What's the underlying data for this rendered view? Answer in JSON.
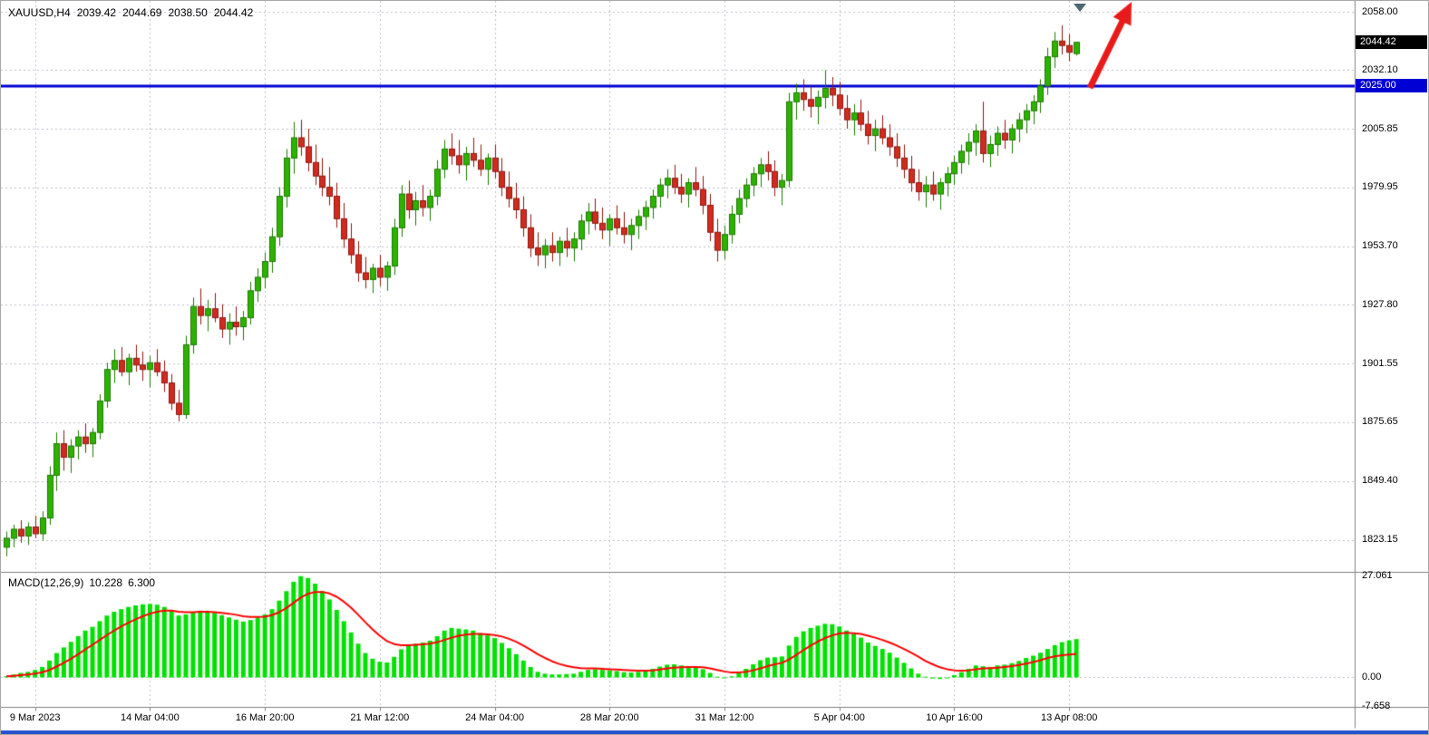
{
  "header": {
    "symbol": "XAUUSD,H4",
    "open": "2039.42",
    "high": "2044.69",
    "low": "2038.50",
    "close": "2044.42"
  },
  "macd_panel": {
    "label": "MACD(12,26,9)",
    "main_value": "10.228",
    "signal_value": "6.300",
    "axis": [
      {
        "text": "27.061",
        "value": 27.061
      },
      {
        "text": "0.00",
        "value": 0
      },
      {
        "text": "-7.658",
        "value": -7.658
      }
    ]
  },
  "price_axis": {
    "gridline_labels": [
      "2058.00",
      "2032.10",
      "2005.85",
      "1979.95",
      "1953.70",
      "1927.80",
      "1901.55",
      "1875.65",
      "1849.40",
      "1823.15"
    ],
    "current_price": {
      "label": "2044.42",
      "value": 2044.42,
      "bg": "#000000",
      "fg": "#ffffff"
    },
    "horizontal_line": {
      "label": "2025.00",
      "value": 2025.0,
      "color": "#0000d4"
    }
  },
  "time_axis": {
    "labels": [
      {
        "text": "9 Mar 2023",
        "index": 4
      },
      {
        "text": "14 Mar 04:00",
        "index": 20
      },
      {
        "text": "16 Mar 20:00",
        "index": 36
      },
      {
        "text": "21 Mar 12:00",
        "index": 52
      },
      {
        "text": "24 Mar 04:00",
        "index": 68
      },
      {
        "text": "28 Mar 20:00",
        "index": 84
      },
      {
        "text": "31 Mar 12:00",
        "index": 100
      },
      {
        "text": "5 Apr 04:00",
        "index": 116
      },
      {
        "text": "10 Apr 16:00",
        "index": 132
      },
      {
        "text": "13 Apr 08:00",
        "index": 148
      }
    ]
  },
  "colors": {
    "grid": "#b9bfcc",
    "bull": "#2db200",
    "bull_stroke": "#1d7a00",
    "bear": "#d02b1f",
    "bear_stroke": "#8f1710",
    "macd_hist": "#00e100",
    "macd_signal": "#ff0000",
    "hline": "#0000d4",
    "arrow": "#e81a1a",
    "separator": "#808080",
    "window_edge": "#2a52cc",
    "shift_marker": "#4d6670",
    "axis_text": "#000000"
  },
  "chart_data": {
    "type": "candlestick",
    "symbol": "XAUUSD",
    "timeframe": "H4",
    "title": "XAUUSD,H4 with MACD(12,26,9)",
    "price_axis_range": [
      1823.15,
      2058.0
    ],
    "macd_axis_range": [
      -7.658,
      27.061
    ],
    "horizontal_line_value": 2025.0,
    "last_price": 2044.42,
    "candles": [
      [
        1820,
        1827,
        1816,
        1824
      ],
      [
        1824,
        1830,
        1820,
        1828
      ],
      [
        1828,
        1832,
        1822,
        1825
      ],
      [
        1825,
        1831,
        1821,
        1829
      ],
      [
        1829,
        1834,
        1824,
        1826
      ],
      [
        1826,
        1836,
        1823,
        1833
      ],
      [
        1833,
        1856,
        1830,
        1852
      ],
      [
        1852,
        1871,
        1845,
        1866
      ],
      [
        1866,
        1872,
        1854,
        1860
      ],
      [
        1860,
        1868,
        1853,
        1865
      ],
      [
        1865,
        1872,
        1859,
        1869
      ],
      [
        1869,
        1875,
        1862,
        1866
      ],
      [
        1866,
        1873,
        1860,
        1871
      ],
      [
        1871,
        1888,
        1868,
        1885
      ],
      [
        1885,
        1902,
        1882,
        1899
      ],
      [
        1899,
        1908,
        1893,
        1903
      ],
      [
        1903,
        1909,
        1896,
        1898
      ],
      [
        1898,
        1906,
        1892,
        1904
      ],
      [
        1904,
        1910,
        1898,
        1901
      ],
      [
        1901,
        1907,
        1894,
        1899
      ],
      [
        1899,
        1905,
        1891,
        1902
      ],
      [
        1902,
        1908,
        1896,
        1898
      ],
      [
        1898,
        1903,
        1889,
        1893
      ],
      [
        1893,
        1897,
        1881,
        1884
      ],
      [
        1884,
        1890,
        1876,
        1879
      ],
      [
        1879,
        1914,
        1877,
        1910
      ],
      [
        1910,
        1931,
        1906,
        1927
      ],
      [
        1927,
        1935,
        1919,
        1923
      ],
      [
        1923,
        1930,
        1916,
        1926
      ],
      [
        1926,
        1933,
        1920,
        1922
      ],
      [
        1922,
        1928,
        1913,
        1917
      ],
      [
        1917,
        1924,
        1910,
        1920
      ],
      [
        1920,
        1927,
        1914,
        1918
      ],
      [
        1918,
        1925,
        1912,
        1922
      ],
      [
        1922,
        1938,
        1919,
        1934
      ],
      [
        1934,
        1944,
        1929,
        1940
      ],
      [
        1940,
        1951,
        1935,
        1947
      ],
      [
        1947,
        1962,
        1942,
        1958
      ],
      [
        1958,
        1980,
        1954,
        1976
      ],
      [
        1976,
        1997,
        1971,
        1993
      ],
      [
        1993,
        2009,
        1986,
        2002
      ],
      [
        2002,
        2010,
        1994,
        1998
      ],
      [
        1998,
        2006,
        1987,
        1991
      ],
      [
        1991,
        1999,
        1981,
        1985
      ],
      [
        1985,
        1993,
        1976,
        1980
      ],
      [
        1980,
        1989,
        1972,
        1976
      ],
      [
        1976,
        1982,
        1962,
        1966
      ],
      [
        1966,
        1973,
        1953,
        1957
      ],
      [
        1957,
        1964,
        1946,
        1950
      ],
      [
        1950,
        1956,
        1938,
        1942
      ],
      [
        1942,
        1949,
        1935,
        1939
      ],
      [
        1939,
        1946,
        1933,
        1944
      ],
      [
        1944,
        1950,
        1936,
        1940
      ],
      [
        1940,
        1947,
        1934,
        1945
      ],
      [
        1945,
        1966,
        1941,
        1962
      ],
      [
        1962,
        1981,
        1958,
        1977
      ],
      [
        1977,
        1983,
        1966,
        1970
      ],
      [
        1970,
        1978,
        1963,
        1974
      ],
      [
        1974,
        1981,
        1967,
        1971
      ],
      [
        1971,
        1979,
        1965,
        1976
      ],
      [
        1976,
        1992,
        1972,
        1988
      ],
      [
        1988,
        2001,
        1984,
        1997
      ],
      [
        1997,
        2004,
        1990,
        1994
      ],
      [
        1994,
        2001,
        1986,
        1990
      ],
      [
        1990,
        1998,
        1983,
        1995
      ],
      [
        1995,
        2002,
        1989,
        1992
      ],
      [
        1992,
        1999,
        1985,
        1988
      ],
      [
        1988,
        1995,
        1981,
        1993
      ],
      [
        1993,
        1999,
        1984,
        1987
      ],
      [
        1987,
        1993,
        1976,
        1980
      ],
      [
        1980,
        1987,
        1971,
        1975
      ],
      [
        1975,
        1982,
        1966,
        1970
      ],
      [
        1970,
        1976,
        1958,
        1962
      ],
      [
        1962,
        1968,
        1949,
        1953
      ],
      [
        1953,
        1960,
        1945,
        1950
      ],
      [
        1950,
        1957,
        1944,
        1954
      ],
      [
        1954,
        1960,
        1947,
        1951
      ],
      [
        1951,
        1958,
        1945,
        1956
      ],
      [
        1956,
        1962,
        1949,
        1953
      ],
      [
        1953,
        1960,
        1947,
        1957
      ],
      [
        1957,
        1968,
        1952,
        1965
      ],
      [
        1965,
        1973,
        1959,
        1969
      ],
      [
        1969,
        1975,
        1961,
        1964
      ],
      [
        1964,
        1971,
        1957,
        1961
      ],
      [
        1961,
        1968,
        1954,
        1966
      ],
      [
        1966,
        1972,
        1959,
        1962
      ],
      [
        1962,
        1969,
        1955,
        1959
      ],
      [
        1959,
        1966,
        1952,
        1963
      ],
      [
        1963,
        1970,
        1957,
        1967
      ],
      [
        1967,
        1974,
        1961,
        1971
      ],
      [
        1971,
        1979,
        1966,
        1976
      ],
      [
        1976,
        1984,
        1971,
        1981
      ],
      [
        1981,
        1988,
        1975,
        1984
      ],
      [
        1984,
        1990,
        1977,
        1980
      ],
      [
        1980,
        1986,
        1973,
        1977
      ],
      [
        1977,
        1984,
        1971,
        1982
      ],
      [
        1982,
        1989,
        1976,
        1979
      ],
      [
        1979,
        1985,
        1968,
        1972
      ],
      [
        1972,
        1977,
        1956,
        1960
      ],
      [
        1960,
        1966,
        1947,
        1952
      ],
      [
        1952,
        1963,
        1948,
        1959
      ],
      [
        1959,
        1972,
        1955,
        1968
      ],
      [
        1968,
        1979,
        1964,
        1975
      ],
      [
        1975,
        1984,
        1971,
        1981
      ],
      [
        1981,
        1989,
        1976,
        1986
      ],
      [
        1986,
        1993,
        1980,
        1990
      ],
      [
        1990,
        1996,
        1983,
        1987
      ],
      [
        1987,
        1992,
        1976,
        1980
      ],
      [
        1980,
        1986,
        1972,
        1983
      ],
      [
        1983,
        2022,
        1980,
        2018
      ],
      [
        2018,
        2026,
        2010,
        2022
      ],
      [
        2022,
        2028,
        2014,
        2019
      ],
      [
        2019,
        2025,
        2011,
        2016
      ],
      [
        2016,
        2023,
        2008,
        2020
      ],
      [
        2020,
        2032,
        2015,
        2024
      ],
      [
        2024,
        2029,
        2016,
        2021
      ],
      [
        2021,
        2027,
        2012,
        2015
      ],
      [
        2015,
        2021,
        2006,
        2010
      ],
      [
        2010,
        2017,
        2003,
        2013
      ],
      [
        2013,
        2019,
        2005,
        2008
      ],
      [
        2008,
        2014,
        1999,
        2003
      ],
      [
        2003,
        2010,
        1996,
        2006
      ],
      [
        2006,
        2012,
        1999,
        2002
      ],
      [
        2002,
        2008,
        1994,
        1998
      ],
      [
        1998,
        2004,
        1989,
        1993
      ],
      [
        1993,
        1999,
        1984,
        1988
      ],
      [
        1988,
        1994,
        1978,
        1982
      ],
      [
        1982,
        1988,
        1974,
        1978
      ],
      [
        1978,
        1985,
        1971,
        1981
      ],
      [
        1981,
        1987,
        1974,
        1977
      ],
      [
        1977,
        1984,
        1970,
        1982
      ],
      [
        1982,
        1989,
        1976,
        1986
      ],
      [
        1986,
        1994,
        1981,
        1991
      ],
      [
        1991,
        1999,
        1986,
        1996
      ],
      [
        1996,
        2004,
        1990,
        2000
      ],
      [
        2000,
        2008,
        1994,
        2005
      ],
      [
        2005,
        2018,
        1991,
        1995
      ],
      [
        1995,
        2003,
        1989,
        1999
      ],
      [
        1999,
        2007,
        1994,
        2004
      ],
      [
        2004,
        2010,
        1997,
        2001
      ],
      [
        2001,
        2008,
        1995,
        2006
      ],
      [
        2006,
        2013,
        2000,
        2010
      ],
      [
        2010,
        2017,
        2004,
        2014
      ],
      [
        2014,
        2021,
        2008,
        2018
      ],
      [
        2018,
        2028,
        2013,
        2025
      ],
      [
        2025,
        2042,
        2021,
        2038
      ],
      [
        2038,
        2049,
        2033,
        2045
      ],
      [
        2045,
        2052,
        2039,
        2043
      ],
      [
        2043,
        2048,
        2036,
        2040
      ],
      [
        2039.42,
        2044.69,
        2038.5,
        2044.42
      ]
    ],
    "macd": [
      0.3,
      0.8,
      1.2,
      1.5,
      2.0,
      2.8,
      4.5,
      6.5,
      8.0,
      9.5,
      11.0,
      12.5,
      13.5,
      15.0,
      16.5,
      17.5,
      18.2,
      18.8,
      19.2,
      19.5,
      19.6,
      19.4,
      18.8,
      17.8,
      16.5,
      16.8,
      17.5,
      17.8,
      17.6,
      17.2,
      16.6,
      16.0,
      15.4,
      14.9,
      15.3,
      16.0,
      16.8,
      18.2,
      20.5,
      23.0,
      25.5,
      27.0,
      26.5,
      25.0,
      23.0,
      20.8,
      18.0,
      15.0,
      12.0,
      9.0,
      6.5,
      5.0,
      4.2,
      4.0,
      5.5,
      7.5,
      8.5,
      9.0,
      9.3,
      9.8,
      11.0,
      12.5,
      13.2,
      13.0,
      12.8,
      12.5,
      11.8,
      11.2,
      10.5,
      9.2,
      7.8,
      6.2,
      4.5,
      2.8,
      1.5,
      1.0,
      0.8,
      0.8,
      0.9,
      1.0,
      1.5,
      2.0,
      2.2,
      2.0,
      1.9,
      1.7,
      1.4,
      1.3,
      1.5,
      1.8,
      2.3,
      2.9,
      3.4,
      3.5,
      3.2,
      3.0,
      2.8,
      2.2,
      1.2,
      0.2,
      -0.2,
      0.3,
      1.2,
      2.3,
      3.5,
      4.6,
      5.3,
      5.4,
      5.6,
      8.5,
      10.8,
      12.3,
      13.2,
      13.8,
      14.3,
      14.2,
      13.6,
      12.5,
      11.6,
      10.6,
      9.3,
      8.4,
      7.6,
      6.6,
      5.3,
      3.9,
      2.4,
      1.0,
      0.2,
      -0.3,
      -0.4,
      0.0,
      0.6,
      1.4,
      2.3,
      3.2,
      3.0,
      2.8,
      3.2,
      3.4,
      3.8,
      4.4,
      5.2,
      5.8,
      6.6,
      7.6,
      8.6,
      9.4,
      9.9,
      10.228
    ],
    "signal": [
      0.3,
      0.4,
      0.6,
      0.8,
      1.0,
      1.4,
      2.0,
      2.9,
      3.9,
      5.0,
      6.2,
      7.5,
      8.7,
      10.0,
      11.3,
      12.5,
      13.6,
      14.6,
      15.5,
      16.3,
      17.0,
      17.5,
      17.8,
      17.8,
      17.5,
      17.4,
      17.4,
      17.5,
      17.5,
      17.4,
      17.2,
      17.0,
      16.7,
      16.3,
      16.1,
      16.1,
      16.2,
      16.6,
      17.4,
      18.5,
      19.9,
      21.3,
      22.3,
      22.8,
      22.8,
      22.4,
      21.5,
      20.2,
      18.6,
      16.7,
      14.7,
      12.8,
      11.1,
      9.7,
      8.9,
      8.6,
      8.6,
      8.7,
      8.8,
      9.0,
      9.4,
      10.0,
      10.6,
      11.1,
      11.4,
      11.6,
      11.6,
      11.5,
      11.3,
      10.9,
      10.3,
      9.5,
      8.5,
      7.4,
      6.2,
      5.2,
      4.3,
      3.6,
      3.1,
      2.7,
      2.5,
      2.4,
      2.4,
      2.3,
      2.2,
      2.1,
      2.0,
      1.9,
      1.8,
      1.8,
      1.9,
      2.1,
      2.4,
      2.6,
      2.7,
      2.8,
      2.8,
      2.7,
      2.4,
      2.0,
      1.6,
      1.3,
      1.3,
      1.5,
      1.9,
      2.4,
      3.0,
      3.5,
      3.9,
      4.8,
      6.0,
      7.3,
      8.5,
      9.6,
      10.5,
      11.2,
      11.7,
      11.9,
      11.8,
      11.6,
      11.1,
      10.6,
      10.0,
      9.3,
      8.5,
      7.6,
      6.6,
      5.5,
      4.4,
      3.5,
      2.7,
      2.2,
      1.9,
      1.8,
      1.9,
      2.2,
      2.4,
      2.5,
      2.6,
      2.8,
      3.0,
      3.3,
      3.7,
      4.1,
      4.6,
      5.2,
      5.6,
      5.9,
      6.1,
      6.3
    ]
  }
}
